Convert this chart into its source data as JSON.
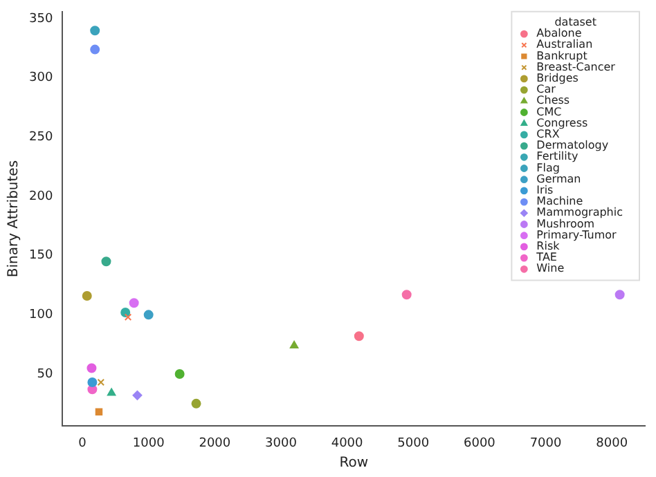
{
  "chart_data": {
    "type": "scatter",
    "xlabel": "Row",
    "ylabel": "Binary Attributes",
    "legend_title": "dataset",
    "legend": "top right",
    "grid": false,
    "xlim": [
      -300,
      8500
    ],
    "xticks": [
      0,
      1000,
      2000,
      3000,
      4000,
      5000,
      6000,
      7000,
      8000
    ],
    "ylim": [
      6,
      356
    ],
    "yticks": [
      50,
      100,
      150,
      200,
      250,
      300,
      350
    ],
    "series": [
      {
        "name": "Abalone",
        "color": "#f77189",
        "marker": "circle",
        "x": [
          4180
        ],
        "values": [
          82
        ]
      },
      {
        "name": "Australian",
        "color": "#f7754f",
        "marker": "cross",
        "x": [
          690
        ],
        "values": [
          98
        ]
      },
      {
        "name": "Bankrupt",
        "color": "#dc8932",
        "marker": "square",
        "x": [
          250
        ],
        "values": [
          18
        ]
      },
      {
        "name": "Breast-Cancer",
        "color": "#c39532",
        "marker": "cross",
        "x": [
          280
        ],
        "values": [
          43
        ]
      },
      {
        "name": "Bridges",
        "color": "#ae9d31",
        "marker": "circle",
        "x": [
          70
        ],
        "values": [
          116
        ]
      },
      {
        "name": "Car",
        "color": "#97a431",
        "marker": "circle",
        "x": [
          1720
        ],
        "values": [
          25
        ]
      },
      {
        "name": "Chess",
        "color": "#77ab31",
        "marker": "triangle",
        "x": [
          3200
        ],
        "values": [
          74
        ]
      },
      {
        "name": "CMC",
        "color": "#50b131",
        "marker": "circle",
        "x": [
          1470
        ],
        "values": [
          50
        ]
      },
      {
        "name": "Congress",
        "color": "#34af8a",
        "marker": "triangle",
        "x": [
          440
        ],
        "values": [
          34
        ]
      },
      {
        "name": "CRX",
        "color": "#36ada4",
        "marker": "circle",
        "x": [
          650
        ],
        "values": [
          102
        ]
      },
      {
        "name": "Dermatology",
        "color": "#38aa8c",
        "marker": "circle",
        "x": [
          360
        ],
        "values": [
          145
        ]
      },
      {
        "name": "Fertility",
        "color": "#39a7b3",
        "marker": "circle",
        "values": [
          null
        ]
      },
      {
        "name": "Flag",
        "color": "#3ba3bc",
        "marker": "circle",
        "x": [
          190
        ],
        "values": [
          340
        ]
      },
      {
        "name": "German",
        "color": "#3da0c5",
        "marker": "circle",
        "x": [
          1000
        ],
        "values": [
          100
        ]
      },
      {
        "name": "Iris",
        "color": "#3b9bd4",
        "marker": "circle",
        "x": [
          150
        ],
        "values": [
          43
        ]
      },
      {
        "name": "Machine",
        "color": "#6e8ef5",
        "marker": "circle",
        "x": [
          190
        ],
        "values": [
          324
        ]
      },
      {
        "name": "Mammographic",
        "color": "#9a84f5",
        "marker": "diamond",
        "x": [
          830
        ],
        "values": [
          32
        ]
      },
      {
        "name": "Mushroom",
        "color": "#bb79f4",
        "marker": "circle",
        "x": [
          8120
        ],
        "values": [
          117
        ]
      },
      {
        "name": "Primary-Tumor",
        "color": "#d86ff2",
        "marker": "circle",
        "x": [
          780
        ],
        "values": [
          110
        ]
      },
      {
        "name": "Risk",
        "color": "#e25ee0",
        "marker": "circle",
        "x": [
          140
        ],
        "values": [
          55
        ]
      },
      {
        "name": "TAE",
        "color": "#f066c8",
        "marker": "circle",
        "x": [
          150
        ],
        "values": [
          37
        ]
      },
      {
        "name": "Wine",
        "color": "#f56ea7",
        "marker": "circle",
        "x": [
          4900
        ],
        "values": [
          117
        ]
      }
    ]
  }
}
